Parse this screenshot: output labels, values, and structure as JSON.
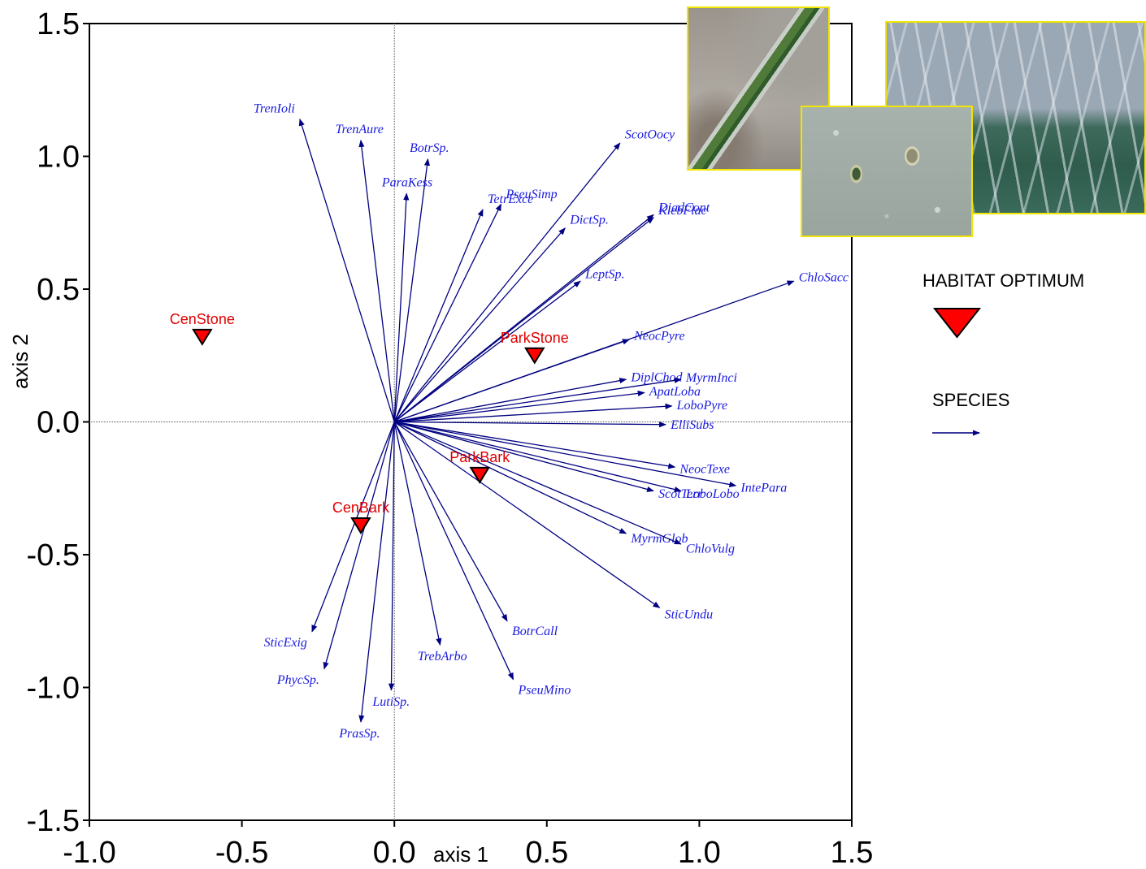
{
  "chart_data": {
    "type": "biplot",
    "xlabel": "axis 1",
    "ylabel": "axis 2",
    "xlim": [
      -1.0,
      1.5
    ],
    "ylim": [
      -1.5,
      1.5
    ],
    "xticks": [
      "-1.0",
      "-0.5",
      "0.0",
      "0.5",
      "1.0",
      "1.5"
    ],
    "yticks": [
      "1.5",
      "1.0",
      "0.5",
      "0.0",
      "-0.5",
      "-1.0",
      "-1.5"
    ],
    "reference_lines": "dotted lines at x=0 and y=0",
    "species_color": "#000080",
    "species_label_color": "#1a1ae0",
    "habitat_color": "#ff0000",
    "species": [
      {
        "name": "TrenIoli",
        "x": -0.31,
        "y": 1.14
      },
      {
        "name": "TrenAure",
        "x": -0.11,
        "y": 1.06
      },
      {
        "name": "BotrSp.",
        "x": 0.11,
        "y": 0.99
      },
      {
        "name": "ParaKess",
        "x": 0.04,
        "y": 0.86
      },
      {
        "name": "TetrExce",
        "x": 0.29,
        "y": 0.8
      },
      {
        "name": "PseuSimp",
        "x": 0.35,
        "y": 0.82
      },
      {
        "name": "ScotOocy",
        "x": 0.74,
        "y": 1.05
      },
      {
        "name": "DiadCont",
        "x": 0.85,
        "y": 0.78
      },
      {
        "name": "KlebFlac",
        "x": 0.85,
        "y": 0.77
      },
      {
        "name": "DictSp.",
        "x": 0.56,
        "y": 0.73
      },
      {
        "name": "LeptSp.",
        "x": 0.61,
        "y": 0.53
      },
      {
        "name": "ChloSacc",
        "x": 1.31,
        "y": 0.53
      },
      {
        "name": "NeocPyre",
        "x": 0.77,
        "y": 0.31
      },
      {
        "name": "DiplChod",
        "x": 0.76,
        "y": 0.16
      },
      {
        "name": "MyrmInci",
        "x": 0.94,
        "y": 0.16
      },
      {
        "name": "ApatLoba",
        "x": 0.82,
        "y": 0.11
      },
      {
        "name": "LoboPyre",
        "x": 0.91,
        "y": 0.06
      },
      {
        "name": "ElliSubs",
        "x": 0.89,
        "y": -0.01
      },
      {
        "name": "NeocTexe",
        "x": 0.92,
        "y": -0.17
      },
      {
        "name": "IntePara",
        "x": 1.12,
        "y": -0.24
      },
      {
        "name": "ScotTerr",
        "x": 0.85,
        "y": -0.26
      },
      {
        "name": "LoboLobo",
        "x": 0.94,
        "y": -0.26
      },
      {
        "name": "MyrmGlob",
        "x": 0.76,
        "y": -0.42
      },
      {
        "name": "ChloVulg",
        "x": 0.94,
        "y": -0.46
      },
      {
        "name": "SticUndu",
        "x": 0.87,
        "y": -0.7
      },
      {
        "name": "BotrCall",
        "x": 0.37,
        "y": -0.75
      },
      {
        "name": "TrebArbo",
        "x": 0.15,
        "y": -0.84
      },
      {
        "name": "PseuMino",
        "x": 0.39,
        "y": -0.97
      },
      {
        "name": "SticExig",
        "x": -0.27,
        "y": -0.79
      },
      {
        "name": "PhycSp.",
        "x": -0.23,
        "y": -0.93
      },
      {
        "name": "LutiSp.",
        "x": -0.01,
        "y": -1.01
      },
      {
        "name": "PrasSp.",
        "x": -0.11,
        "y": -1.13
      }
    ],
    "habitats": [
      {
        "name": "CenStone",
        "x": -0.63,
        "y": 0.32
      },
      {
        "name": "ParkStone",
        "x": 0.46,
        "y": 0.25
      },
      {
        "name": "CenBark",
        "x": -0.11,
        "y": -0.39
      },
      {
        "name": "ParkBark",
        "x": 0.28,
        "y": -0.2
      }
    ],
    "legend": {
      "placement": "right",
      "habitat_label": "HABITAT OPTIMUM",
      "species_label": "SPECIES"
    }
  },
  "photos": {
    "count": 3,
    "border_color": "#f0e600",
    "subjects": [
      "filamentous alga",
      "filamentous algal mat",
      "oval algal cells"
    ]
  }
}
